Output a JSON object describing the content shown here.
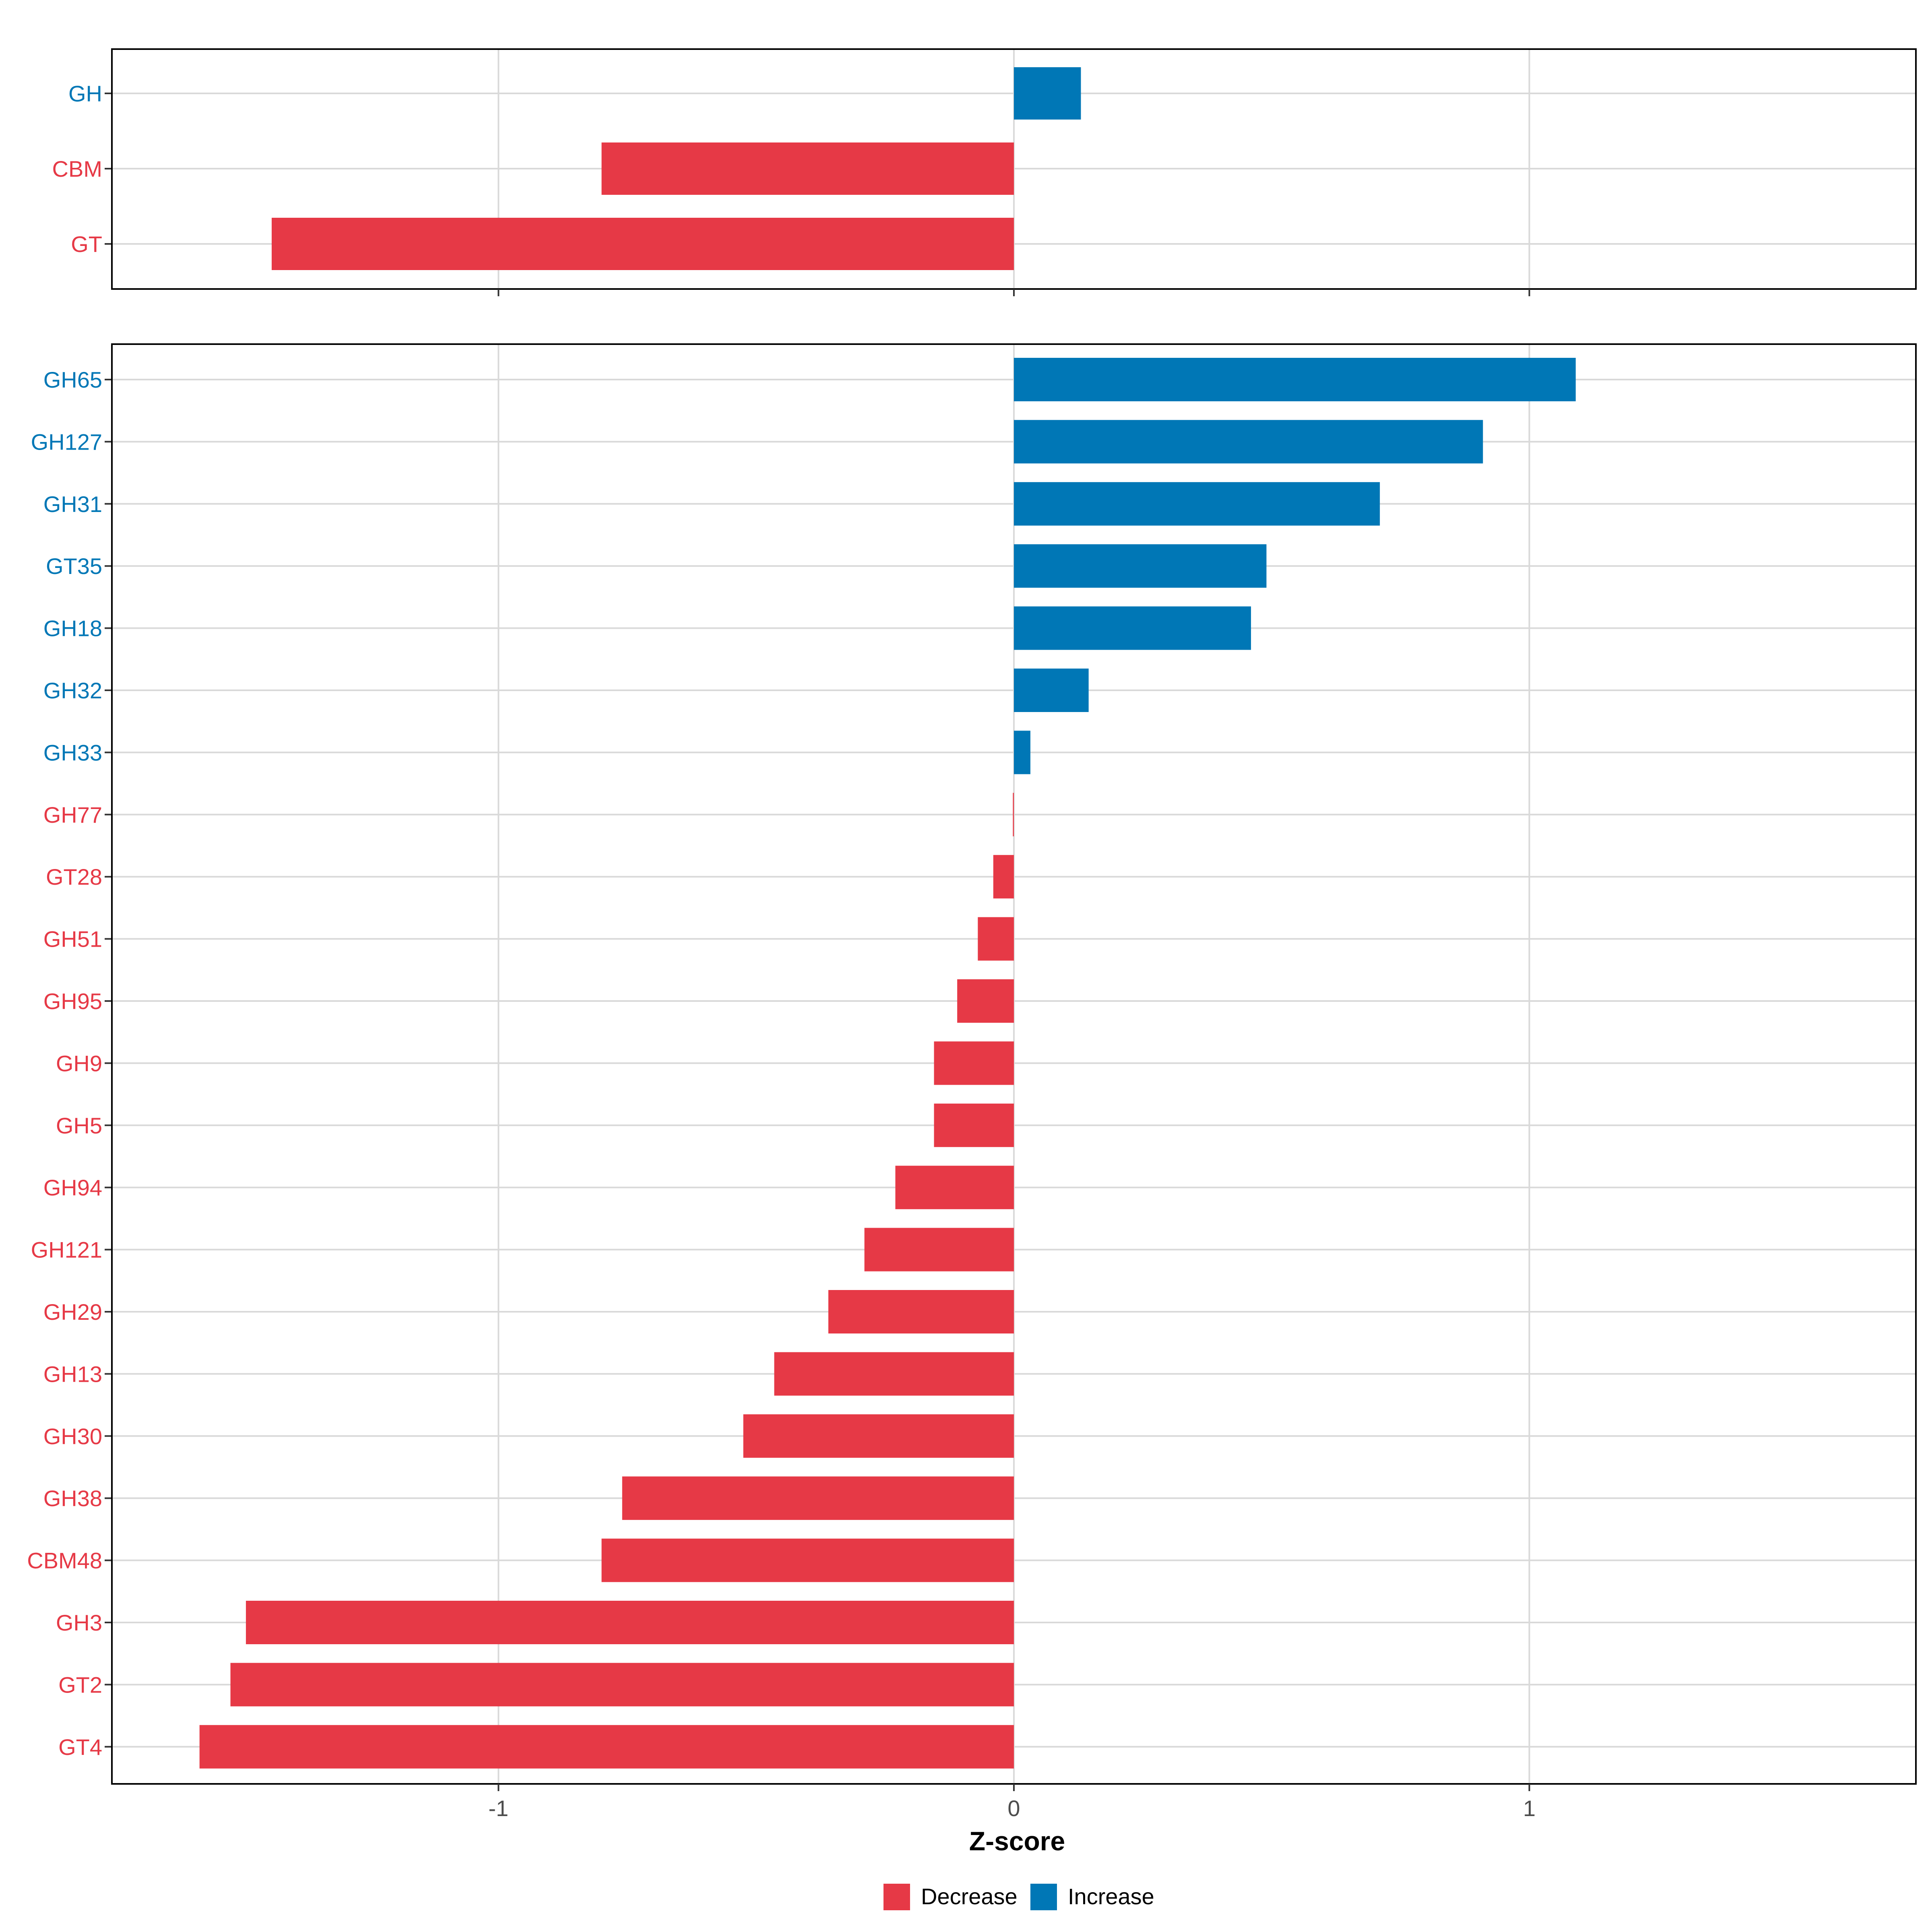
{
  "colors": {
    "decrease": "#E63946",
    "increase": "#0077B6",
    "grid": "#d9d9d9",
    "panel_border": "#000000"
  },
  "chart_data": {
    "type": "bar",
    "orientation": "horizontal",
    "xlabel": "Z-score",
    "xlim": [
      -1.75,
      1.75
    ],
    "x_ticks": [
      -1,
      0,
      1
    ],
    "x_tick_labels": [
      "-1",
      "0",
      "1"
    ],
    "grid": true,
    "legend": {
      "placement": "bottom",
      "items": [
        {
          "label": "Decrease",
          "color_key": "decrease"
        },
        {
          "label": "Increase",
          "color_key": "increase"
        }
      ]
    },
    "panels": [
      {
        "categories": [
          "GH",
          "CBM",
          "GT"
        ],
        "values": [
          0.13,
          -0.8,
          -1.44
        ],
        "direction": [
          "Increase",
          "Decrease",
          "Decrease"
        ]
      },
      {
        "categories": [
          "GH65",
          "GH127",
          "GH31",
          "GT35",
          "GH18",
          "GH32",
          "GH33",
          "GH77",
          "GT28",
          "GH51",
          "GH95",
          "GH9",
          "GH5",
          "GH94",
          "GH121",
          "GH29",
          "GH13",
          "GH30",
          "GH38",
          "CBM48",
          "GH3",
          "GT2",
          "GT4"
        ],
        "values": [
          1.09,
          0.91,
          0.71,
          0.49,
          0.46,
          0.145,
          0.032,
          -0.002,
          -0.04,
          -0.07,
          -0.11,
          -0.155,
          -0.155,
          -0.23,
          -0.29,
          -0.36,
          -0.465,
          -0.525,
          -0.76,
          -0.8,
          -1.49,
          -1.52,
          -1.58
        ],
        "direction": [
          "Increase",
          "Increase",
          "Increase",
          "Increase",
          "Increase",
          "Increase",
          "Increase",
          "Decrease",
          "Decrease",
          "Decrease",
          "Decrease",
          "Decrease",
          "Decrease",
          "Decrease",
          "Decrease",
          "Decrease",
          "Decrease",
          "Decrease",
          "Decrease",
          "Decrease",
          "Decrease",
          "Decrease",
          "Decrease"
        ]
      }
    ]
  }
}
